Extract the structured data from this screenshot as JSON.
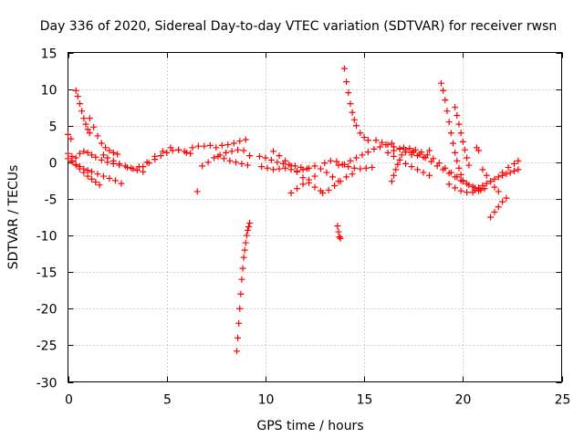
{
  "chart_data": {
    "type": "scatter",
    "title": "Day 336 of 2020, Sidereal Day-to-day VTEC variation (SDTVAR) for receiver rwsn",
    "xlabel": "GPS time / hours",
    "ylabel": "SDTVAR / TECUs",
    "xlim": [
      0,
      25
    ],
    "ylim": [
      -30,
      15
    ],
    "xticks": [
      0,
      5,
      10,
      15,
      20,
      25
    ],
    "yticks": [
      -30,
      -25,
      -20,
      -15,
      -10,
      -5,
      0,
      5,
      10,
      15
    ],
    "grid": true,
    "marker": "+",
    "color": "#ff0000",
    "series": [
      {
        "name": "s1",
        "x": [
          0.0,
          0.2,
          0.4,
          0.6,
          0.8,
          1.0,
          1.2,
          1.4,
          1.7,
          2.0,
          2.3,
          2.6,
          3.0,
          3.3,
          3.6,
          4.0,
          4.4,
          4.8,
          5.2,
          5.6,
          6.0
        ],
        "y": [
          1.2,
          0.8,
          0.6,
          1.2,
          1.5,
          1.3,
          1.0,
          0.7,
          0.3,
          0.0,
          -0.2,
          -0.4,
          -0.7,
          -0.9,
          -0.6,
          0.0,
          0.8,
          1.5,
          2.0,
          1.7,
          1.3
        ]
      },
      {
        "name": "s2",
        "x": [
          0.2,
          0.4,
          0.6,
          0.8,
          1.0,
          1.2,
          1.5,
          1.8,
          2.1,
          2.4,
          2.7
        ],
        "y": [
          0.2,
          -0.3,
          -0.6,
          -0.9,
          -1.1,
          -1.3,
          -1.6,
          -1.9,
          -2.2,
          -2.5,
          -2.9
        ]
      },
      {
        "name": "s3",
        "x": [
          0.0,
          0.2,
          0.4,
          0.6,
          0.8,
          1.0,
          1.2,
          1.4,
          1.6
        ],
        "y": [
          0.5,
          0.1,
          -0.4,
          -0.9,
          -1.4,
          -1.9,
          -2.3,
          -2.7,
          -3.1
        ]
      },
      {
        "name": "s4",
        "x": [
          0.0,
          0.15
        ],
        "y": [
          3.8,
          3.2
        ]
      },
      {
        "name": "s5",
        "x": [
          0.4,
          0.5,
          0.6,
          0.7,
          0.8,
          0.9,
          1.0,
          1.1
        ],
        "y": [
          9.8,
          9.0,
          8.0,
          7.0,
          6.0,
          5.2,
          4.5,
          4.0
        ]
      },
      {
        "name": "s6",
        "x": [
          1.1,
          1.3,
          1.5,
          1.7,
          1.9,
          2.1,
          2.3,
          2.5
        ],
        "y": [
          6.0,
          4.8,
          3.6,
          2.6,
          2.0,
          1.6,
          1.3,
          1.1
        ]
      },
      {
        "name": "s7",
        "x": [
          1.8,
          2.0,
          2.3,
          2.6,
          2.9,
          3.2,
          3.5,
          3.8
        ],
        "y": [
          1.0,
          0.6,
          0.2,
          -0.2,
          -0.5,
          -0.8,
          -1.1,
          -1.3
        ]
      },
      {
        "name": "s8",
        "x": [
          3.8,
          4.1,
          4.4,
          4.7,
          5.0,
          5.3,
          5.6,
          5.9,
          6.2
        ],
        "y": [
          -0.6,
          -0.1,
          0.4,
          0.9,
          1.3,
          1.6,
          1.7,
          1.5,
          1.2
        ]
      },
      {
        "name": "s9",
        "x": [
          6.3,
          6.6,
          6.9,
          7.2,
          7.5,
          7.8,
          8.1,
          8.4,
          8.7,
          9.0
        ],
        "y": [
          2.0,
          2.2,
          2.2,
          2.3,
          2.0,
          2.3,
          2.4,
          2.6,
          2.9,
          3.1
        ]
      },
      {
        "name": "s10",
        "x": [
          6.8,
          7.1,
          7.4,
          7.7,
          8.0,
          8.3,
          8.6,
          8.9,
          9.2
        ],
        "y": [
          -0.5,
          0.0,
          0.6,
          1.0,
          1.3,
          1.5,
          1.7,
          1.6,
          0.9
        ]
      },
      {
        "name": "s11",
        "x": [
          7.6,
          7.9,
          8.2,
          8.5,
          8.8,
          9.1
        ],
        "y": [
          0.8,
          0.5,
          0.2,
          0.0,
          -0.2,
          -0.4
        ]
      },
      {
        "name": "s12",
        "x": [
          6.55
        ],
        "y": [
          -4.0
        ]
      },
      {
        "name": "s13",
        "x": [
          8.55,
          8.6,
          8.65,
          8.7,
          8.75,
          8.8,
          8.85,
          8.9,
          8.95,
          9.0,
          9.05,
          9.1,
          9.15,
          9.2
        ],
        "y": [
          -25.8,
          -24.0,
          -22.0,
          -20.0,
          -18.0,
          -16.0,
          -14.5,
          -13.0,
          -12.0,
          -11.0,
          -10.0,
          -9.3,
          -8.8,
          -8.3
        ]
      },
      {
        "name": "s14",
        "x": [
          9.7,
          10.0,
          10.3,
          10.6,
          10.9,
          11.2,
          11.5,
          11.8,
          12.1
        ],
        "y": [
          0.8,
          0.6,
          0.3,
          0.0,
          -0.2,
          -0.3,
          -0.5,
          -0.7,
          -0.9
        ]
      },
      {
        "name": "s15",
        "x": [
          9.8,
          10.1,
          10.4,
          10.7,
          11.0,
          11.3,
          11.6,
          11.9,
          12.2
        ],
        "y": [
          -0.6,
          -0.8,
          -1.0,
          -0.9,
          -0.8,
          -1.0,
          -1.2,
          -1.0,
          -0.8
        ]
      },
      {
        "name": "s16",
        "x": [
          10.4,
          10.7,
          11.0,
          11.3,
          11.6,
          11.9,
          12.2,
          12.5,
          12.8
        ],
        "y": [
          1.5,
          0.9,
          0.2,
          -0.5,
          -1.3,
          -2.1,
          -2.8,
          -3.4,
          -3.9
        ]
      },
      {
        "name": "s17",
        "x": [
          11.3,
          11.6,
          11.9,
          12.2,
          12.5
        ],
        "y": [
          -4.2,
          -3.6,
          -3.0,
          -2.4,
          -1.9
        ]
      },
      {
        "name": "s18",
        "x": [
          12.5,
          12.8,
          13.1,
          13.4,
          13.7
        ],
        "y": [
          -0.5,
          -0.9,
          -1.4,
          -2.0,
          -2.6
        ]
      },
      {
        "name": "s19",
        "x": [
          12.9,
          13.2,
          13.5,
          13.8,
          14.1,
          14.4
        ],
        "y": [
          -4.2,
          -3.8,
          -3.2,
          -2.6,
          -2.0,
          -1.6
        ]
      },
      {
        "name": "s20",
        "x": [
          13.0,
          13.3,
          13.6,
          13.9,
          14.2,
          14.5,
          14.8,
          15.1,
          15.4
        ],
        "y": [
          -0.1,
          0.2,
          0.1,
          -0.3,
          -0.6,
          -0.8,
          -0.9,
          -0.8,
          -0.7
        ]
      },
      {
        "name": "s21",
        "x": [
          13.7,
          14.0,
          14.3,
          14.6,
          14.9,
          15.2,
          15.5,
          15.8,
          16.1,
          16.4
        ],
        "y": [
          -0.4,
          -0.3,
          0.2,
          0.6,
          1.0,
          1.4,
          1.8,
          2.1,
          2.4,
          2.6
        ]
      },
      {
        "name": "s22",
        "x": [
          13.65,
          13.7,
          13.75,
          13.8
        ],
        "y": [
          -8.7,
          -9.5,
          -10.2,
          -10.4
        ]
      },
      {
        "name": "s23",
        "x": [
          14.0,
          14.1,
          14.2,
          14.3,
          14.4,
          14.5,
          14.6,
          14.8,
          15.0,
          15.2
        ],
        "y": [
          12.8,
          11.0,
          9.5,
          8.0,
          6.8,
          5.8,
          5.0,
          4.0,
          3.4,
          3.0
        ]
      },
      {
        "name": "s24",
        "x": [
          15.6,
          15.9,
          16.2,
          16.5,
          16.8,
          17.1,
          17.4
        ],
        "y": [
          3.0,
          2.7,
          2.4,
          2.1,
          1.8,
          1.4,
          1.0
        ]
      },
      {
        "name": "s25",
        "x": [
          16.4,
          16.5,
          16.6,
          16.7,
          16.8,
          16.9
        ],
        "y": [
          -2.6,
          -1.8,
          -1.0,
          -0.3,
          0.3,
          1.0
        ]
      },
      {
        "name": "s26",
        "x": [
          16.2,
          16.5,
          16.8,
          17.1,
          17.4,
          17.7,
          18.0,
          18.3
        ],
        "y": [
          1.3,
          1.6,
          1.9,
          1.7,
          1.3,
          0.9,
          0.7,
          1.6
        ]
      },
      {
        "name": "s27",
        "x": [
          16.5,
          16.8,
          17.1,
          17.4,
          17.7,
          18.0,
          18.3
        ],
        "y": [
          0.8,
          0.3,
          -0.2,
          -0.6,
          -1.0,
          -1.4,
          -1.8
        ]
      },
      {
        "name": "s28",
        "x": [
          17.0,
          17.3,
          17.6,
          17.9,
          18.2,
          18.5,
          18.8,
          19.1,
          19.4,
          19.7,
          20.0,
          20.3,
          20.6,
          20.9
        ],
        "y": [
          2.0,
          1.9,
          1.7,
          1.4,
          1.0,
          0.5,
          -0.1,
          -0.8,
          -1.4,
          -2.0,
          -2.6,
          -3.1,
          -3.5,
          -3.8
        ]
      },
      {
        "name": "s29",
        "x": [
          17.5,
          17.8,
          18.1,
          18.4,
          18.7,
          19.0,
          19.3,
          19.6,
          19.9,
          20.2,
          20.5,
          20.8
        ],
        "y": [
          1.5,
          1.1,
          0.6,
          0.1,
          -0.5,
          -1.0,
          -1.5,
          -2.0,
          -2.5,
          -2.9,
          -3.3,
          -3.6
        ]
      },
      {
        "name": "s30",
        "x": [
          18.9,
          19.0,
          19.1,
          19.2,
          19.3,
          19.4,
          19.5,
          19.6,
          19.7,
          19.8,
          19.9,
          20.0
        ],
        "y": [
          10.8,
          9.8,
          8.5,
          7.0,
          5.5,
          4.0,
          2.6,
          1.3,
          0.2,
          -0.8,
          -1.7,
          -2.5
        ]
      },
      {
        "name": "s31",
        "x": [
          19.6,
          19.7,
          19.8,
          19.9,
          20.0,
          20.1,
          20.2,
          20.3
        ],
        "y": [
          7.5,
          6.4,
          5.2,
          4.0,
          2.8,
          1.7,
          0.6,
          -0.4
        ]
      },
      {
        "name": "s32",
        "x": [
          19.3,
          19.6,
          19.9,
          20.2,
          20.5,
          20.8,
          21.1
        ],
        "y": [
          -3.0,
          -3.5,
          -3.9,
          -4.1,
          -4.1,
          -3.9,
          -3.6
        ]
      },
      {
        "name": "s33",
        "x": [
          20.7,
          20.8
        ],
        "y": [
          2.0,
          1.6
        ]
      },
      {
        "name": "s34",
        "x": [
          20.6,
          20.8,
          21.0,
          21.2,
          21.4,
          21.6,
          21.8,
          22.0,
          22.2,
          22.4,
          22.6,
          22.8
        ],
        "y": [
          -3.8,
          -3.5,
          -3.2,
          -2.9,
          -2.6,
          -2.3,
          -2.0,
          -1.8,
          -1.6,
          -1.4,
          -1.2,
          -1.0
        ]
      },
      {
        "name": "s35",
        "x": [
          21.0,
          21.2,
          21.4,
          21.6,
          21.8
        ],
        "y": [
          -1.0,
          -1.8,
          -2.6,
          -3.4,
          -4.0
        ]
      },
      {
        "name": "s36",
        "x": [
          21.4,
          21.6,
          21.8,
          22.0,
          22.2
        ],
        "y": [
          -7.5,
          -6.8,
          -6.1,
          -5.4,
          -4.9
        ]
      },
      {
        "name": "s37",
        "x": [
          22.0,
          22.3,
          22.6,
          22.8
        ],
        "y": [
          -1.4,
          -0.7,
          -0.2,
          0.2
        ]
      }
    ]
  }
}
